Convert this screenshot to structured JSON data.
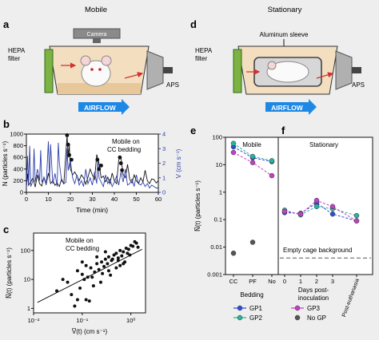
{
  "panel_letters": {
    "a": "a",
    "b": "b",
    "c": "c",
    "d": "d",
    "e": "e",
    "f": "f"
  },
  "panel_a": {
    "title": "Mobile",
    "camera": "Camera",
    "hepa": "HEPA",
    "filter": "filter",
    "aps": "APS",
    "airflow": "AIRFLOW"
  },
  "panel_d": {
    "title": "Stationary",
    "sleeve": "Aluminum sleeve",
    "hepa": "HEPA",
    "filter": "filter",
    "aps": "APS",
    "airflow": "AIRFLOW"
  },
  "colors": {
    "black": "#111111",
    "blue": "#2f3fa8",
    "gp1": "#2b4fd9",
    "gp2": "#27b59a",
    "gp3": "#c23fc7",
    "nogp": "#555555",
    "airflow_arrow": "#1e88e5"
  },
  "chart_data": [
    {
      "id": "b",
      "type": "line",
      "annotation": [
        "Mobile on",
        "CC bedding"
      ],
      "xlabel": "Time (min)",
      "ylabel_left": "N (particles s⁻¹)",
      "ylabel_right": "V (cm s⁻¹)",
      "xlim": [
        0,
        60
      ],
      "xticks": [
        "0",
        "10",
        "20",
        "30",
        "40",
        "50",
        "60"
      ],
      "ylim_left": [
        0,
        1000
      ],
      "yticks_left": [
        "0",
        "200",
        "400",
        "600",
        "800",
        "1000"
      ],
      "ylim_right": [
        0,
        4
      ],
      "yticks_right": [
        "0",
        "1",
        "2",
        "3",
        "4"
      ],
      "series": [
        {
          "axis": "left",
          "color": "#111111",
          "x": [
            0,
            0.5,
            1,
            2,
            3,
            4,
            5,
            6,
            7,
            8,
            9,
            10,
            11,
            12,
            13,
            14,
            15,
            16,
            17,
            18,
            18.5,
            19,
            19.5,
            20,
            21,
            22,
            23,
            24,
            25,
            26,
            27,
            28,
            29,
            30,
            31,
            32,
            33,
            34,
            35,
            36,
            37,
            38,
            39,
            40,
            41,
            42,
            43,
            44,
            45,
            46,
            47,
            48,
            49,
            50,
            51,
            52,
            53,
            54,
            55,
            56,
            57,
            58,
            59,
            60
          ],
          "values": [
            60,
            320,
            120,
            180,
            250,
            90,
            300,
            150,
            110,
            260,
            140,
            330,
            150,
            200,
            120,
            160,
            100,
            230,
            140,
            700,
            980,
            600,
            820,
            400,
            300,
            350,
            280,
            200,
            300,
            250,
            140,
            260,
            400,
            300,
            220,
            650,
            500,
            250,
            280,
            180,
            260,
            150,
            330,
            200,
            150,
            560,
            600,
            300,
            250,
            480,
            220,
            160,
            300,
            200,
            150,
            250,
            180,
            380,
            200,
            150,
            230,
            220,
            160,
            200
          ]
        },
        {
          "axis": "right",
          "color": "#2f3fa8",
          "x": [
            0,
            0.5,
            1,
            1.5,
            2,
            3,
            3.5,
            4,
            5,
            6,
            6.5,
            7,
            8,
            9,
            10,
            10.5,
            11,
            12,
            13,
            14,
            14.5,
            15,
            16,
            17,
            18,
            18.5,
            19,
            20,
            21,
            22,
            23,
            24,
            25,
            26,
            27,
            28,
            29,
            30,
            31,
            32,
            32.5,
            33,
            34,
            35,
            36,
            37,
            38,
            39,
            40,
            41,
            42,
            43,
            44,
            45,
            46,
            47,
            48,
            49,
            50,
            51,
            52,
            53,
            54,
            55,
            56,
            57,
            58,
            59,
            60
          ],
          "values": [
            0.3,
            2.5,
            0.6,
            3.2,
            0.4,
            0.8,
            3.0,
            0.7,
            1.6,
            0.8,
            2.9,
            0.7,
            1.0,
            0.5,
            3.5,
            0.9,
            3.3,
            0.6,
            1.3,
            0.4,
            3.4,
            2.0,
            0.8,
            0.6,
            0.7,
            3.0,
            1.5,
            2.2,
            1.0,
            0.6,
            1.2,
            0.5,
            0.8,
            0.4,
            1.6,
            0.6,
            1.0,
            0.5,
            1.4,
            0.6,
            2.2,
            1.0,
            0.7,
            0.4,
            1.2,
            0.6,
            0.9,
            0.4,
            0.7,
            1.1,
            0.5,
            1.4,
            0.7,
            1.6,
            0.5,
            0.6,
            0.9,
            0.4,
            1.2,
            0.6,
            0.5,
            0.7,
            0.4,
            0.6,
            0.3,
            0.5,
            0.4,
            0.3,
            0.3
          ]
        },
        {
          "axis": "left",
          "color": "#111111",
          "style": "markers",
          "x": [
            18.5,
            19,
            19.5,
            20.5,
            32.3,
            33,
            34,
            42.5,
            43,
            43.5
          ],
          "values": [
            980,
            820,
            640,
            560,
            560,
            400,
            460,
            600,
            500,
            380
          ]
        }
      ]
    },
    {
      "id": "c",
      "type": "scatter",
      "annotation": [
        "Mobile on",
        "CC bedding"
      ],
      "xlabel": "V̅(t) (cm s⁻¹)",
      "ylabel": "N̅(t) (particles s⁻¹)",
      "xscale": "log",
      "yscale": "log",
      "xlim": [
        0.01,
        2
      ],
      "ylim": [
        0.7,
        400
      ],
      "xticks": [
        "10⁻²",
        "10⁻¹",
        "10⁰"
      ],
      "yticks": [
        "1",
        "10",
        "100"
      ],
      "fit_line": {
        "x": [
          0.012,
          1.7
        ],
        "y": [
          1.6,
          110
        ]
      },
      "x": [
        0.05,
        0.08,
        0.1,
        0.12,
        0.15,
        0.2,
        0.25,
        0.3,
        0.35,
        0.4,
        0.5,
        0.6,
        0.7,
        0.8,
        1.0,
        1.2,
        1.4,
        0.06,
        0.09,
        0.11,
        0.13,
        0.18,
        0.22,
        0.28,
        0.33,
        0.45,
        0.55,
        0.65,
        0.9,
        1.1,
        0.07,
        0.14,
        0.17,
        0.24,
        0.38,
        0.5,
        0.75,
        0.04,
        0.1,
        0.2,
        0.3,
        0.6,
        0.95,
        1.3,
        0.03,
        0.08,
        0.16,
        0.26,
        0.42,
        0.7,
        0.85,
        0.12,
        0.35,
        0.55
      ],
      "y": [
        8,
        20,
        15,
        30,
        25,
        35,
        40,
        50,
        60,
        45,
        80,
        100,
        90,
        120,
        150,
        200,
        130,
        3,
        5,
        10,
        12,
        18,
        22,
        28,
        35,
        70,
        55,
        65,
        110,
        140,
        1.2,
        1.8,
        6,
        8,
        14,
        25,
        40,
        10,
        40,
        60,
        90,
        30,
        70,
        180,
        4,
        2,
        12,
        16,
        50,
        35,
        80,
        2,
        20,
        45
      ]
    },
    {
      "id": "e",
      "type": "line",
      "title": "Mobile",
      "ylabel": "N̅(t) (particles s⁻¹)",
      "yscale": "log",
      "ylim": [
        0.001,
        100
      ],
      "yticks": [
        "0.001",
        "0.01",
        "0.1",
        "1",
        "10",
        "100"
      ],
      "categories": [
        "CC",
        "PF",
        "No"
      ],
      "xlabel": "Bedding",
      "series": [
        {
          "name": "GP1",
          "color": "#2b4fd9",
          "values": [
            45,
            18,
            13
          ]
        },
        {
          "name": "GP2",
          "color": "#27b59a",
          "values": [
            60,
            20,
            14
          ]
        },
        {
          "name": "GP3",
          "color": "#c23fc7",
          "values": [
            28,
            12,
            4
          ]
        },
        {
          "name": "No GP",
          "color": "#555555",
          "values": [
            0.006,
            0.015,
            null
          ]
        }
      ]
    },
    {
      "id": "f",
      "type": "line",
      "title": "Stationary",
      "yscale": "log",
      "ylim": [
        0.001,
        100
      ],
      "categories": [
        "0",
        "1",
        "2",
        "3",
        "Post-euthanasia"
      ],
      "xlabel_lines": [
        "Days post-",
        "inoculation"
      ],
      "annotation": "Empty cage background",
      "background_level": 0.004,
      "series": [
        {
          "name": "GP1",
          "color": "#2b4fd9",
          "values": [
            0.18,
            0.17,
            0.4,
            0.16,
            0.09
          ]
        },
        {
          "name": "GP2",
          "color": "#27b59a",
          "values": [
            0.22,
            0.15,
            0.3,
            0.25,
            0.14
          ]
        },
        {
          "name": "GP3",
          "color": "#c23fc7",
          "values": [
            0.2,
            0.16,
            0.5,
            0.3,
            0.09
          ]
        }
      ]
    }
  ],
  "legend": [
    {
      "label": "GP1",
      "color": "#2b4fd9"
    },
    {
      "label": "GP3",
      "color": "#c23fc7"
    },
    {
      "label": "GP2",
      "color": "#27b59a"
    },
    {
      "label": "No GP",
      "color": "#555555"
    }
  ]
}
